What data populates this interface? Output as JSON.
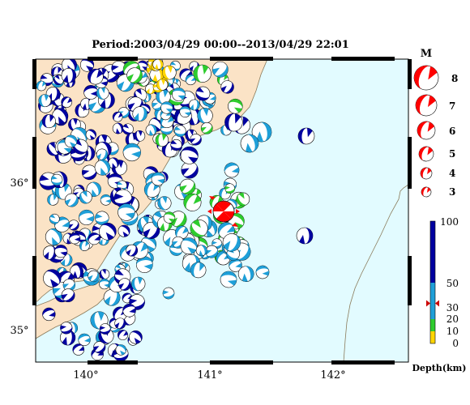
{
  "title": "Period:2003/04/29 00:00--2013/04/29 22:01",
  "map": {
    "x_ticks": [
      "140°",
      "141°",
      "142°"
    ],
    "y_ticks": [
      "36°",
      "35°"
    ],
    "colors": {
      "land": "#fbe3c6",
      "sea": "#e2fbff",
      "coast": "#8a7a5a",
      "main_shock": "#ff0000"
    }
  },
  "magnitude_legend": {
    "title": "M",
    "levels": [
      "8",
      "7",
      "6",
      "5",
      "4",
      "3"
    ]
  },
  "depth_legend": {
    "title": "Depth(km)",
    "ticks": [
      "100",
      "50",
      "30",
      "20",
      "10",
      "0"
    ],
    "bands": [
      {
        "from": 0,
        "to": 10,
        "color": "#ffd500"
      },
      {
        "from": 10,
        "to": 20,
        "color": "#2ecc2e"
      },
      {
        "from": 20,
        "to": 50,
        "color": "#1e9fd8"
      },
      {
        "from": 50,
        "to": 100,
        "color": "#0000a0"
      }
    ],
    "marker_depth": 33
  }
}
